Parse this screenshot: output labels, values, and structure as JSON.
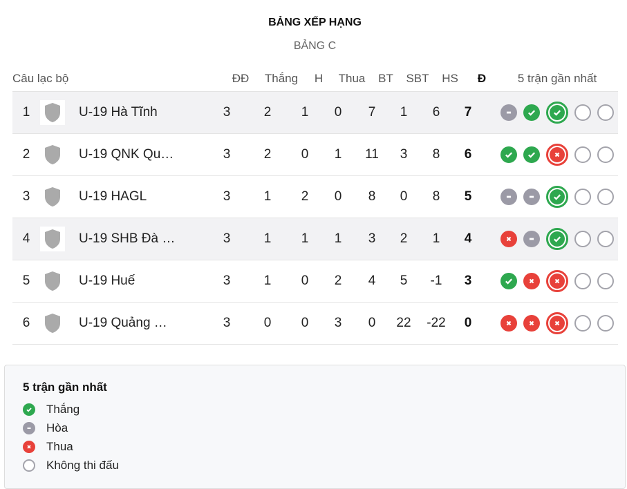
{
  "title": "BẢNG XẾP HẠNG",
  "subtitle": "BẢNG C",
  "headers": {
    "club": "Câu lạc bộ",
    "played": "ĐĐ",
    "won": "Thắng",
    "drawn": "H",
    "lost": "Thua",
    "gf": "BT",
    "ga": "SBT",
    "gd": "HS",
    "pts": "Đ",
    "form": "5 trận gần nhất"
  },
  "colors": {
    "win": "#2ea84f",
    "draw": "#9b9aa6",
    "loss": "#e8413a",
    "none": "#a3a3ab"
  },
  "rows": [
    {
      "rank": "1",
      "name": "U-19 Hà Tĩnh",
      "played": "3",
      "won": "2",
      "drawn": "1",
      "lost": "0",
      "gf": "7",
      "ga": "1",
      "gd": "6",
      "pts": "7",
      "form": [
        "D",
        "W",
        "W",
        "N",
        "N"
      ]
    },
    {
      "rank": "2",
      "name": "U-19 QNK Qu…",
      "played": "3",
      "won": "2",
      "drawn": "0",
      "lost": "1",
      "gf": "11",
      "ga": "3",
      "gd": "8",
      "pts": "6",
      "form": [
        "W",
        "W",
        "L",
        "N",
        "N"
      ]
    },
    {
      "rank": "3",
      "name": "U-19 HAGL",
      "played": "3",
      "won": "1",
      "drawn": "2",
      "lost": "0",
      "gf": "8",
      "ga": "0",
      "gd": "8",
      "pts": "5",
      "form": [
        "D",
        "D",
        "W",
        "N",
        "N"
      ]
    },
    {
      "rank": "4",
      "name": "U-19 SHB Đà …",
      "played": "3",
      "won": "1",
      "drawn": "1",
      "lost": "1",
      "gf": "3",
      "ga": "2",
      "gd": "1",
      "pts": "4",
      "form": [
        "L",
        "D",
        "W",
        "N",
        "N"
      ]
    },
    {
      "rank": "5",
      "name": "U-19 Huế",
      "played": "3",
      "won": "1",
      "drawn": "0",
      "lost": "2",
      "gf": "4",
      "ga": "5",
      "gd": "-1",
      "pts": "3",
      "form": [
        "W",
        "L",
        "L",
        "N",
        "N"
      ]
    },
    {
      "rank": "6",
      "name": "U-19 Quảng …",
      "played": "3",
      "won": "0",
      "drawn": "0",
      "lost": "3",
      "gf": "0",
      "ga": "22",
      "gd": "-22",
      "pts": "0",
      "form": [
        "L",
        "L",
        "L",
        "N",
        "N"
      ]
    }
  ],
  "legend": {
    "title": "5 trận gần nhất",
    "win": "Thắng",
    "draw": "Hòa",
    "loss": "Thua",
    "none": "Không thi đấu"
  }
}
